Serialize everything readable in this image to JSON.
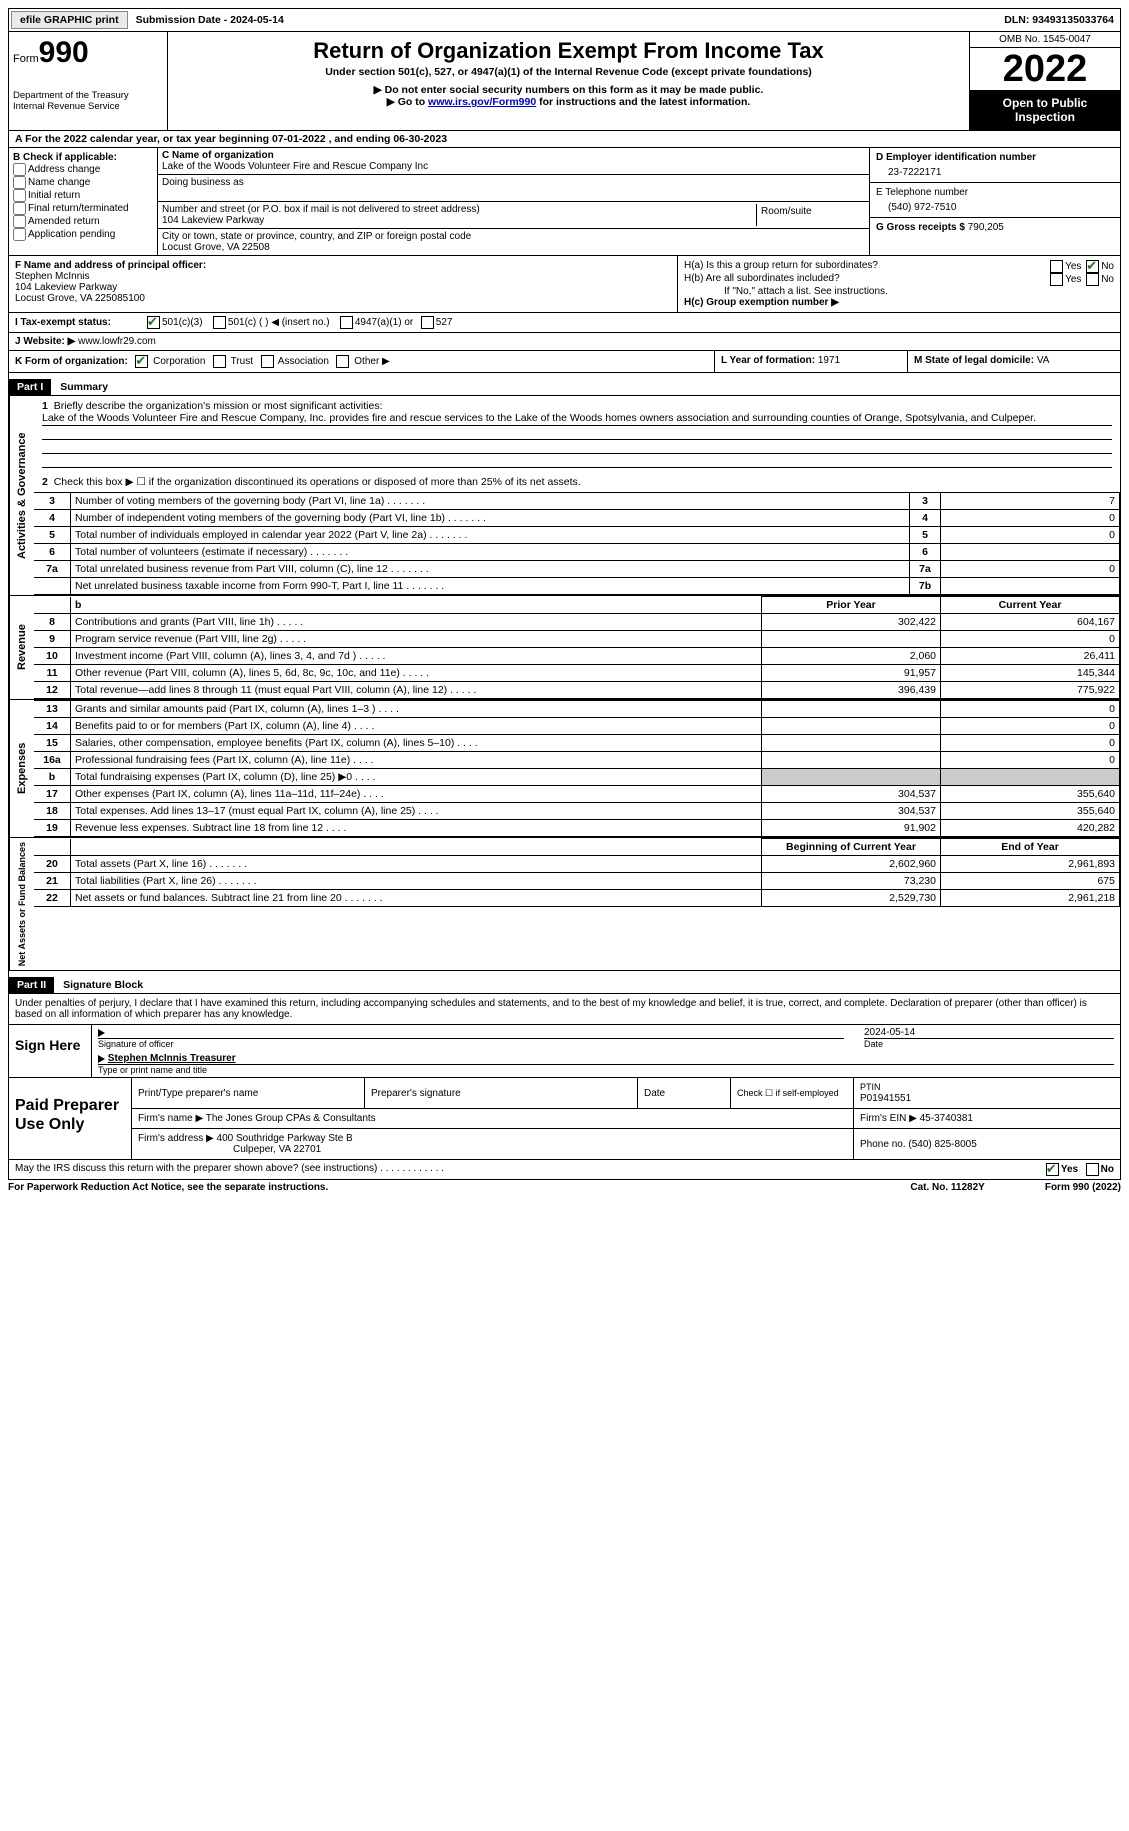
{
  "topbar": {
    "efile": "efile GRAPHIC print",
    "sub_label": "Submission Date - ",
    "sub_date": "2024-05-14",
    "dln_label": "DLN: ",
    "dln": "93493135033764"
  },
  "header": {
    "form_word": "Form",
    "form_num": "990",
    "dept": "Department of the Treasury\nInternal Revenue Service",
    "title": "Return of Organization Exempt From Income Tax",
    "subtitle": "Under section 501(c), 527, or 4947(a)(1) of the Internal Revenue Code (except private foundations)",
    "note1": "▶ Do not enter social security numbers on this form as it may be made public.",
    "note2_pre": "▶ Go to ",
    "note2_link": "www.irs.gov/Form990",
    "note2_post": " for instructions and the latest information.",
    "omb": "OMB No. 1545-0047",
    "year": "2022",
    "open": "Open to Public Inspection"
  },
  "rowA": {
    "text": "A For the 2022 calendar year, or tax year beginning 07-01-2022    , and ending 06-30-2023"
  },
  "colB": {
    "label": "B Check if applicable:",
    "items": [
      "Address change",
      "Name change",
      "Initial return",
      "Final return/terminated",
      "Amended return",
      "Application pending"
    ]
  },
  "colC": {
    "name_label": "C Name of organization",
    "name": "Lake of the Woods Volunteer Fire and Rescue Company Inc",
    "dba_label": "Doing business as",
    "addr_label": "Number and street (or P.O. box if mail is not delivered to street address)",
    "room_label": "Room/suite",
    "addr": "104 Lakeview Parkway",
    "city_label": "City or town, state or province, country, and ZIP or foreign postal code",
    "city": "Locust Grove, VA  22508"
  },
  "colD": {
    "ein_label": "D Employer identification number",
    "ein": "23-7222171",
    "phone_label": "E Telephone number",
    "phone": "(540) 972-7510",
    "gross_label": "G Gross receipts $ ",
    "gross": "790,205"
  },
  "rowF": {
    "label": "F Name and address of principal officer:",
    "name": "Stephen McInnis",
    "addr1": "104 Lakeview Parkway",
    "addr2": "Locust Grove, VA  225085100",
    "ha": "H(a)  Is this a group return for subordinates?",
    "hb": "H(b)  Are all subordinates included?",
    "hb_note": "If \"No,\" attach a list. See instructions.",
    "hc": "H(c)  Group exemption number ▶",
    "yes": "Yes",
    "no": "No"
  },
  "rowI": {
    "label": "I   Tax-exempt status:",
    "o1": "501(c)(3)",
    "o2": "501(c) (  ) ◀ (insert no.)",
    "o3": "4947(a)(1) or",
    "o4": "527"
  },
  "rowJ": {
    "label": "J   Website: ▶  ",
    "val": "www.lowfr29.com"
  },
  "rowK": {
    "label": "K Form of organization:",
    "corp": "Corporation",
    "trust": "Trust",
    "assoc": "Association",
    "other": "Other ▶",
    "l": "L Year of formation: ",
    "lval": "1971",
    "m": "M State of legal domicile: ",
    "mval": "VA"
  },
  "part1": {
    "hdr": "Part I",
    "title": "Summary",
    "mission_label": "Briefly describe the organization's mission or most significant activities:",
    "mission": "Lake of the Woods Volunteer Fire and Rescue Company, Inc. provides fire and rescue services to the Lake of the Woods homes owners association and surrounding counties of Orange, Spotsylvania, and Culpeper.",
    "line2": "Check this box ▶ ☐  if the organization discontinued its operations or disposed of more than 25% of its net assets.",
    "side_ag": "Activities & Governance",
    "side_rev": "Revenue",
    "side_exp": "Expenses",
    "side_net": "Net Assets or Fund Balances",
    "prior": "Prior Year",
    "current": "Current Year",
    "begin": "Beginning of Current Year",
    "end": "End of Year",
    "rows_top": [
      {
        "n": "3",
        "t": "Number of voting members of the governing body (Part VI, line 1a)",
        "box": "3",
        "v": "7"
      },
      {
        "n": "4",
        "t": "Number of independent voting members of the governing body (Part VI, line 1b)",
        "box": "4",
        "v": "0"
      },
      {
        "n": "5",
        "t": "Total number of individuals employed in calendar year 2022 (Part V, line 2a)",
        "box": "5",
        "v": "0"
      },
      {
        "n": "6",
        "t": "Total number of volunteers (estimate if necessary)",
        "box": "6",
        "v": ""
      },
      {
        "n": "7a",
        "t": "Total unrelated business revenue from Part VIII, column (C), line 12",
        "box": "7a",
        "v": "0"
      },
      {
        "n": "",
        "t": "Net unrelated business taxable income from Form 990-T, Part I, line 11",
        "box": "7b",
        "v": ""
      }
    ],
    "rows_rev": [
      {
        "n": "8",
        "t": "Contributions and grants (Part VIII, line 1h)",
        "p": "302,422",
        "c": "604,167"
      },
      {
        "n": "9",
        "t": "Program service revenue (Part VIII, line 2g)",
        "p": "",
        "c": "0"
      },
      {
        "n": "10",
        "t": "Investment income (Part VIII, column (A), lines 3, 4, and 7d )",
        "p": "2,060",
        "c": "26,411"
      },
      {
        "n": "11",
        "t": "Other revenue (Part VIII, column (A), lines 5, 6d, 8c, 9c, 10c, and 11e)",
        "p": "91,957",
        "c": "145,344"
      },
      {
        "n": "12",
        "t": "Total revenue—add lines 8 through 11 (must equal Part VIII, column (A), line 12)",
        "p": "396,439",
        "c": "775,922"
      }
    ],
    "rows_exp": [
      {
        "n": "13",
        "t": "Grants and similar amounts paid (Part IX, column (A), lines 1–3 )",
        "p": "",
        "c": "0"
      },
      {
        "n": "14",
        "t": "Benefits paid to or for members (Part IX, column (A), line 4)",
        "p": "",
        "c": "0"
      },
      {
        "n": "15",
        "t": "Salaries, other compensation, employee benefits (Part IX, column (A), lines 5–10)",
        "p": "",
        "c": "0"
      },
      {
        "n": "16a",
        "t": "Professional fundraising fees (Part IX, column (A), line 11e)",
        "p": "",
        "c": "0"
      },
      {
        "n": "b",
        "t": "Total fundraising expenses (Part IX, column (D), line 25) ▶0",
        "p": "SHADE",
        "c": "SHADE"
      },
      {
        "n": "17",
        "t": "Other expenses (Part IX, column (A), lines 11a–11d, 11f–24e)",
        "p": "304,537",
        "c": "355,640"
      },
      {
        "n": "18",
        "t": "Total expenses. Add lines 13–17 (must equal Part IX, column (A), line 25)",
        "p": "304,537",
        "c": "355,640"
      },
      {
        "n": "19",
        "t": "Revenue less expenses. Subtract line 18 from line 12",
        "p": "91,902",
        "c": "420,282"
      }
    ],
    "rows_net": [
      {
        "n": "20",
        "t": "Total assets (Part X, line 16)",
        "p": "2,602,960",
        "c": "2,961,893"
      },
      {
        "n": "21",
        "t": "Total liabilities (Part X, line 26)",
        "p": "73,230",
        "c": "675"
      },
      {
        "n": "22",
        "t": "Net assets or fund balances. Subtract line 21 from line 20",
        "p": "2,529,730",
        "c": "2,961,218"
      }
    ]
  },
  "part2": {
    "hdr": "Part II",
    "title": "Signature Block",
    "decl": "Under penalties of perjury, I declare that I have examined this return, including accompanying schedules and statements, and to the best of my knowledge and belief, it is true, correct, and complete. Declaration of preparer (other than officer) is based on all information of which preparer has any knowledge.",
    "sign_here": "Sign Here",
    "sig_officer": "Signature of officer",
    "date_label": "Date",
    "sig_date": "2024-05-14",
    "officer_name": "Stephen McInnis  Treasurer",
    "type_name": "Type or print name and title",
    "paid": "Paid Preparer Use Only",
    "pt_name": "Print/Type preparer's name",
    "pt_sig": "Preparer's signature",
    "pt_check": "Check ☐ if self-employed",
    "ptin_label": "PTIN",
    "ptin": "P01941551",
    "firm_name_label": "Firm's name      ▶ ",
    "firm_name": "The Jones Group CPAs & Consultants",
    "firm_ein_label": "Firm's EIN ▶ ",
    "firm_ein": "45-3740381",
    "firm_addr_label": "Firm's address ▶ ",
    "firm_addr": "400 Southridge Parkway Ste B",
    "firm_city": "Culpeper, VA  22701",
    "firm_phone_label": "Phone no. ",
    "firm_phone": "(540) 825-8005",
    "discuss": "May the IRS discuss this return with the preparer shown above? (see instructions)",
    "yes": "Yes",
    "no": "No"
  },
  "footer": {
    "left": "For Paperwork Reduction Act Notice, see the separate instructions.",
    "mid": "Cat. No. 11282Y",
    "right": "Form 990 (2022)"
  }
}
